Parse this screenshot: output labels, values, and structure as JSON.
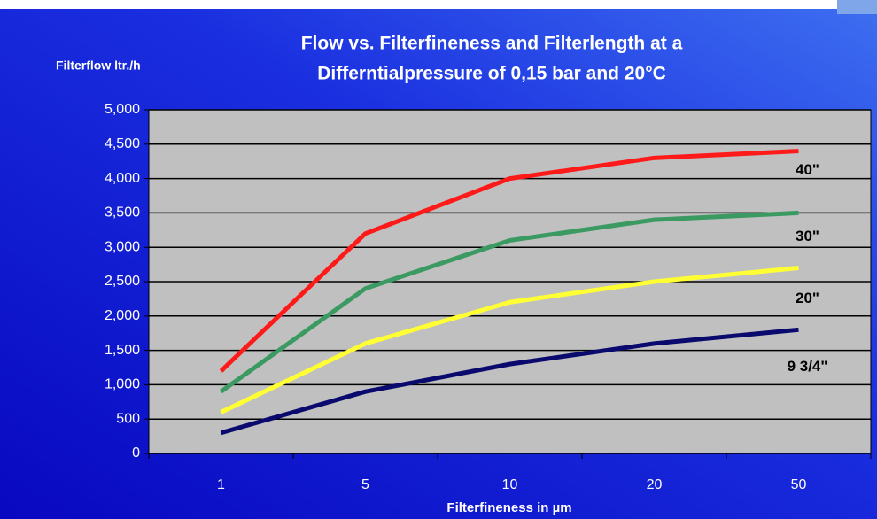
{
  "chart_data": {
    "type": "line",
    "title": [
      "Flow vs. Filterfineness and Filterlength at a",
      "Differntialpressure of 0,15 bar and 20°C"
    ],
    "y_label": "Filterflow  ltr./h",
    "x_label": "Filterfineness  in µm",
    "categories": [
      "1",
      "5",
      "10",
      "20",
      "50"
    ],
    "series": [
      {
        "name": "40\"",
        "color": "#ff1a1a",
        "values": [
          1200,
          3200,
          4000,
          4300,
          4400
        ]
      },
      {
        "name": "30\"",
        "color": "#3a9a62",
        "values": [
          900,
          2400,
          3100,
          3400,
          3500
        ]
      },
      {
        "name": "20\"",
        "color": "#ffff33",
        "values": [
          600,
          1600,
          2200,
          2500,
          2700
        ]
      },
      {
        "name": "9 3/4\"",
        "color": "#0a0a6e",
        "values": [
          300,
          900,
          1300,
          1600,
          1800
        ]
      }
    ],
    "ylim": [
      0,
      5000
    ],
    "yticks": [
      0,
      500,
      {
        "value": 1000,
        "label": "1,000"
      },
      {
        "value": 1500,
        "label": "1,500"
      },
      {
        "value": 2000,
        "label": "2,000"
      },
      {
        "value": 2500,
        "label": "2,500"
      },
      {
        "value": 3000,
        "label": "3,000"
      },
      {
        "value": 3500,
        "label": "3,500"
      },
      {
        "value": 4000,
        "label": "4,000"
      },
      {
        "value": 4500,
        "label": "4,500"
      },
      {
        "value": 5000,
        "label": "5,000"
      }
    ],
    "grid": true
  }
}
